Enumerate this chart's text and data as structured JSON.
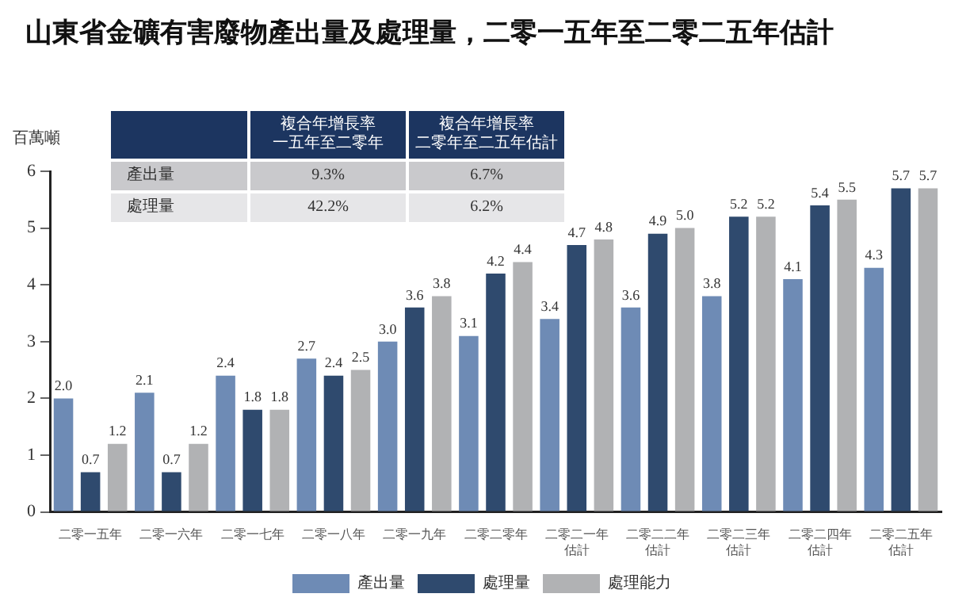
{
  "chart_data": {
    "type": "bar",
    "title": "山東省金礦有害廢物產出量及處理量，二零一五年至二零二五年估計",
    "ylabel": "百萬噸",
    "categories": [
      "二零一五年",
      "二零一六年",
      "二零一七年",
      "二零一八年",
      "二零一九年",
      "二零二零年",
      "二零二一年估計",
      "二零二二年估計",
      "二零二三年估計",
      "二零二四年估計",
      "二零二五年估計"
    ],
    "series": [
      {
        "name": "產出量",
        "color": "#6e8bb5",
        "values": [
          2.0,
          2.1,
          2.4,
          2.7,
          3.0,
          3.1,
          3.4,
          3.6,
          3.8,
          4.1,
          4.3
        ],
        "value_labels": [
          "2.0",
          "2.1",
          "2.4",
          "2.7",
          "3.0",
          "3.1",
          "3.4",
          "3.6",
          "3.8",
          "4.1",
          "4.3"
        ]
      },
      {
        "name": "處理量",
        "color": "#2f4a6e",
        "values": [
          0.7,
          0.7,
          1.8,
          2.4,
          3.6,
          4.2,
          4.7,
          4.9,
          5.2,
          5.4,
          5.7
        ],
        "value_labels": [
          "0.7",
          "0.7",
          "1.8",
          "2.4",
          "3.6",
          "4.2",
          "4.7",
          "4.9",
          "5.2",
          "5.4",
          "5.7"
        ]
      },
      {
        "name": "處理能力",
        "color": "#b1b2b4",
        "values": [
          1.2,
          1.2,
          1.8,
          2.5,
          3.8,
          4.4,
          4.8,
          5.0,
          5.2,
          5.5,
          5.7
        ],
        "value_labels": [
          "1.2",
          "1.2",
          "1.8",
          "2.5",
          "3.8",
          "4.4",
          "4.8",
          "5.0",
          "5.2",
          "5.5",
          "5.7"
        ]
      }
    ],
    "ylim": [
      0,
      6
    ],
    "yticks": [
      0,
      1,
      2,
      3,
      4,
      5,
      6
    ],
    "grid": false,
    "legend": "bottom",
    "annotations": [
      "複合年增長率",
      "一五年至二零年",
      "複合年增長率",
      "二零年至二五年估計",
      "產出量",
      "9.3%",
      "6.7%",
      "處理量",
      "42.2%",
      "6.2%"
    ]
  }
}
